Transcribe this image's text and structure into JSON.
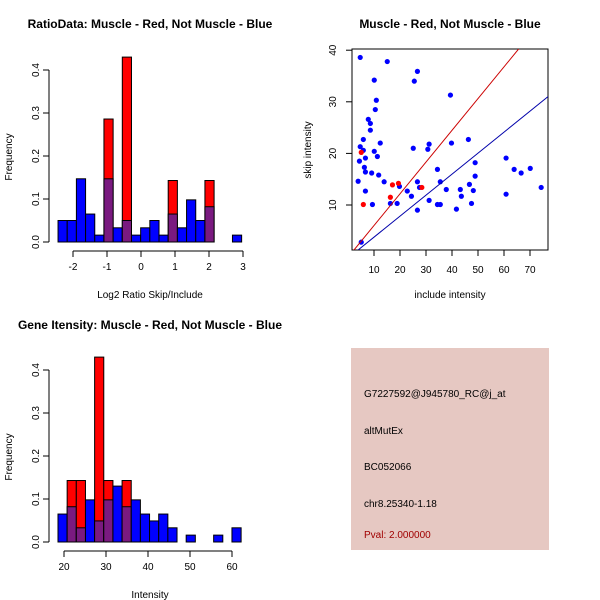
{
  "colors": {
    "red": "#ff0000",
    "blue": "#0000ff",
    "overlap": "#7a1a80",
    "info_bg": "#e6c8c2",
    "pval": "#a00000",
    "red_line": "#cc0000",
    "blue_line": "#0000aa"
  },
  "chart_data": [
    {
      "type": "bar",
      "title": "RatioData: Muscle - Red, Not Muscle - Blue",
      "xlabel": "Log2 Ratio Skip/Include",
      "ylabel": "Frequency",
      "xticks": [
        "-2",
        "-1",
        "0",
        "1",
        "2",
        "3"
      ],
      "xtick_values": [
        -2,
        -1,
        0,
        1,
        2,
        3
      ],
      "yticks": [
        "0.0",
        "0.1",
        "0.2",
        "0.3",
        "0.4"
      ],
      "ytick_values": [
        0,
        0.1,
        0.2,
        0.3,
        0.4
      ],
      "bin_start": -2.44,
      "bin_width": 0.27,
      "series": [
        {
          "name": "Not Muscle",
          "color": "blue",
          "values": [
            0.05,
            0.05,
            0.147,
            0.065,
            0.016,
            0.147,
            0.033,
            0.05,
            0.016,
            0.033,
            0.05,
            0.016,
            0.065,
            0.033,
            0.098,
            0.05,
            0.082,
            0,
            0,
            0.016
          ]
        },
        {
          "name": "Muscle",
          "color": "red",
          "values": [
            0,
            0,
            0,
            0,
            0,
            0.286,
            0,
            0.43,
            0,
            0,
            0,
            0,
            0.143,
            0,
            0,
            0,
            0.143,
            0,
            0,
            0
          ]
        }
      ]
    },
    {
      "type": "scatter",
      "title": "Muscle - Red, Not Muscle - Blue",
      "xlabel": "include intensity",
      "ylabel": "skip intensity",
      "xticks": [
        "10",
        "20",
        "30",
        "40",
        "50",
        "60",
        "70"
      ],
      "xtick_values": [
        10,
        20,
        30,
        40,
        50,
        60,
        70
      ],
      "yticks": [
        "10",
        "20",
        "30",
        "40"
      ],
      "ytick_values": [
        10,
        20,
        30,
        40
      ],
      "xlim": [
        1.5,
        77
      ],
      "ylim": [
        1.3,
        40.5
      ],
      "series": [
        {
          "name": "Not Muscle",
          "color": "blue",
          "points": [
            [
              4.7,
              38.6
            ],
            [
              15.1,
              37.8
            ],
            [
              26.7,
              35.9
            ],
            [
              25.5,
              34.0
            ],
            [
              10.1,
              34.2
            ],
            [
              10.9,
              30.3
            ],
            [
              10.5,
              28.5
            ],
            [
              39.4,
              31.3
            ],
            [
              7.8,
              26.6
            ],
            [
              8.6,
              25.8
            ],
            [
              8.6,
              24.5
            ],
            [
              5.9,
              22.7
            ],
            [
              12.4,
              22.0
            ],
            [
              39.8,
              22.0
            ],
            [
              46.3,
              22.7
            ],
            [
              31.2,
              21.8
            ],
            [
              30.7,
              20.8
            ],
            [
              25.1,
              21.0
            ],
            [
              4.7,
              21.3
            ],
            [
              5.9,
              20.6
            ],
            [
              10.1,
              20.4
            ],
            [
              11.3,
              19.4
            ],
            [
              6.7,
              19.1
            ],
            [
              4.4,
              18.5
            ],
            [
              48.9,
              18.2
            ],
            [
              60.8,
              19.1
            ],
            [
              63.9,
              16.9
            ],
            [
              66.6,
              16.2
            ],
            [
              70.1,
              17.1
            ],
            [
              74.3,
              13.4
            ],
            [
              60.8,
              12.1
            ],
            [
              6.3,
              17.3
            ],
            [
              6.7,
              16.4
            ],
            [
              9.1,
              16.2
            ],
            [
              11.8,
              15.8
            ],
            [
              48.9,
              15.6
            ],
            [
              34.4,
              16.9
            ],
            [
              3.9,
              14.6
            ],
            [
              13.9,
              14.5
            ],
            [
              26.7,
              14.5
            ],
            [
              35.5,
              14.5
            ],
            [
              19.8,
              13.6
            ],
            [
              27.5,
              13.4
            ],
            [
              37.8,
              13.0
            ],
            [
              43.2,
              13.0
            ],
            [
              46.7,
              14.0
            ],
            [
              48.2,
              12.8
            ],
            [
              43.6,
              11.7
            ],
            [
              22.8,
              12.7
            ],
            [
              24.4,
              11.7
            ],
            [
              6.7,
              12.7
            ],
            [
              31.2,
              10.9
            ],
            [
              16.3,
              10.3
            ],
            [
              18.9,
              10.3
            ],
            [
              9.4,
              10.1
            ],
            [
              34.4,
              10.1
            ],
            [
              35.5,
              10.1
            ],
            [
              47.5,
              10.3
            ],
            [
              41.7,
              9.2
            ],
            [
              26.7,
              9.0
            ],
            [
              5.1,
              2.8
            ]
          ]
        },
        {
          "name": "Muscle",
          "color": "red",
          "points": [
            [
              5.1,
              20.2
            ],
            [
              5.9,
              10.1
            ],
            [
              16.3,
              11.5
            ],
            [
              17.1,
              13.9
            ],
            [
              19.4,
              14.2
            ],
            [
              28.4,
              13.4
            ]
          ]
        }
      ],
      "lines": [
        {
          "name": "Muscle fit",
          "color": "red_line",
          "slope": 0.615,
          "intercept": -0.13
        },
        {
          "name": "Not Muscle fit",
          "color": "blue_line",
          "slope": 0.407,
          "intercept": -0.3
        }
      ]
    },
    {
      "type": "bar",
      "title": "Gene Itensity: Muscle - Red, Not Muscle - Blue",
      "xlabel": "Intensity",
      "ylabel": "Frequency",
      "xticks": [
        "20",
        "30",
        "40",
        "50",
        "60"
      ],
      "xtick_values": [
        20,
        30,
        40,
        50,
        60
      ],
      "yticks": [
        "0.0",
        "0.1",
        "0.2",
        "0.3",
        "0.4"
      ],
      "ytick_values": [
        0,
        0.1,
        0.2,
        0.3,
        0.4
      ],
      "bin_start": 18.57,
      "bin_width": 2.18,
      "series": [
        {
          "name": "Not Muscle",
          "color": "blue",
          "values": [
            0.065,
            0.082,
            0.033,
            0.098,
            0.049,
            0.098,
            0.13,
            0.082,
            0.098,
            0.065,
            0.049,
            0.065,
            0.033,
            0,
            0.016,
            0,
            0,
            0.016,
            0,
            0.033
          ]
        },
        {
          "name": "Muscle",
          "color": "red",
          "values": [
            0,
            0.143,
            0.143,
            0,
            0.43,
            0.143,
            0,
            0.143,
            0,
            0,
            0,
            0,
            0,
            0,
            0,
            0,
            0,
            0,
            0,
            0
          ]
        }
      ]
    }
  ],
  "info": {
    "probe": "G7227592@J945780_RC@j_at",
    "event": "altMutEx",
    "accession": "BC052066",
    "location": "chr8.25340-1.18",
    "pval": "Pval: 2.000000"
  }
}
